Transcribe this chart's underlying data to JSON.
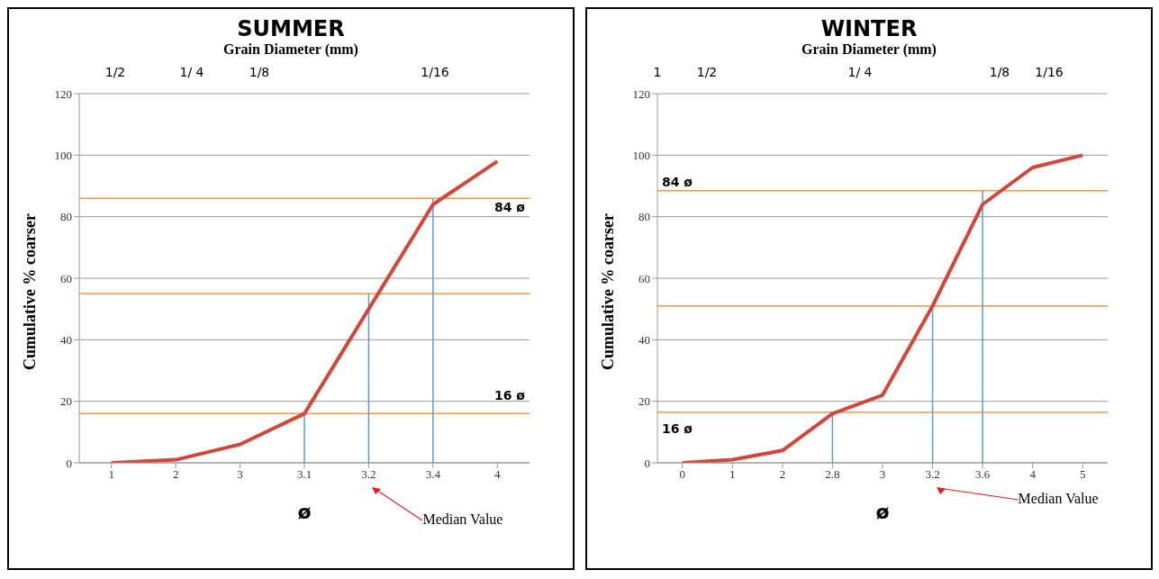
{
  "chart_data": [
    {
      "type": "line",
      "title": "SUMMER",
      "x2label": "Grain Diameter (mm)",
      "xlabel": "ø",
      "ylabel": "Cumulative % coarser",
      "categories": [
        "1",
        "2",
        "3",
        "3.1",
        "3.2",
        "3.4",
        "4"
      ],
      "series": [
        {
          "color": "#d0473b",
          "values": [
            0,
            1,
            6,
            16,
            50,
            84,
            98
          ]
        }
      ],
      "ylim": [
        0,
        120
      ],
      "yticks": [
        0,
        20,
        40,
        60,
        80,
        100,
        120
      ],
      "grid": "y",
      "legend": false,
      "marker": "none",
      "line_style": "solid",
      "ref_lines": [
        {
          "axis": "y",
          "value": 86,
          "label": "84 ø",
          "color": "#f79646"
        },
        {
          "axis": "y",
          "value": 55,
          "color": "#f79646"
        },
        {
          "axis": "y",
          "value": 16,
          "label": "16 ø",
          "color": "#f79646"
        },
        {
          "axis": "x",
          "value": "3.1",
          "color": "#5b9bd5"
        },
        {
          "axis": "x",
          "value": "3.2",
          "color": "#5b9bd5"
        },
        {
          "axis": "x",
          "value": "3.4",
          "color": "#5b9bd5"
        }
      ],
      "annotations": [
        "1/2",
        "1/ 4",
        "1/8",
        "1/16",
        "Median Value"
      ]
    },
    {
      "type": "line",
      "title": "WINTER",
      "x2label": "Grain Diameter (mm)",
      "xlabel": "ø",
      "ylabel": "Cumulative % coarser",
      "categories": [
        "0",
        "1",
        "2",
        "2.8",
        "3",
        "3.2",
        "3.6",
        "4",
        "5"
      ],
      "series": [
        {
          "color": "#d0473b",
          "values": [
            0,
            1,
            4,
            16,
            22,
            51,
            84,
            96,
            100
          ]
        }
      ],
      "ylim": [
        0,
        120
      ],
      "yticks": [
        0,
        20,
        40,
        60,
        80,
        100,
        120
      ],
      "grid": "y",
      "legend": false,
      "marker": "none",
      "line_style": "solid",
      "ref_lines": [
        {
          "axis": "y",
          "value": 88.5,
          "label": "84 ø",
          "color": "#f79646"
        },
        {
          "axis": "y",
          "value": 51,
          "color": "#f79646"
        },
        {
          "axis": "y",
          "value": 16.5,
          "label": "16 ø",
          "color": "#f79646"
        },
        {
          "axis": "x",
          "value": "2.8",
          "color": "#5b9bd5"
        },
        {
          "axis": "x",
          "value": "3.2",
          "color": "#5b9bd5"
        },
        {
          "axis": "x",
          "value": "3.6",
          "color": "#5b9bd5"
        }
      ],
      "annotations": [
        "1",
        "1/2",
        "1/ 4",
        "1/8",
        "1/16",
        "Median Value"
      ]
    }
  ]
}
